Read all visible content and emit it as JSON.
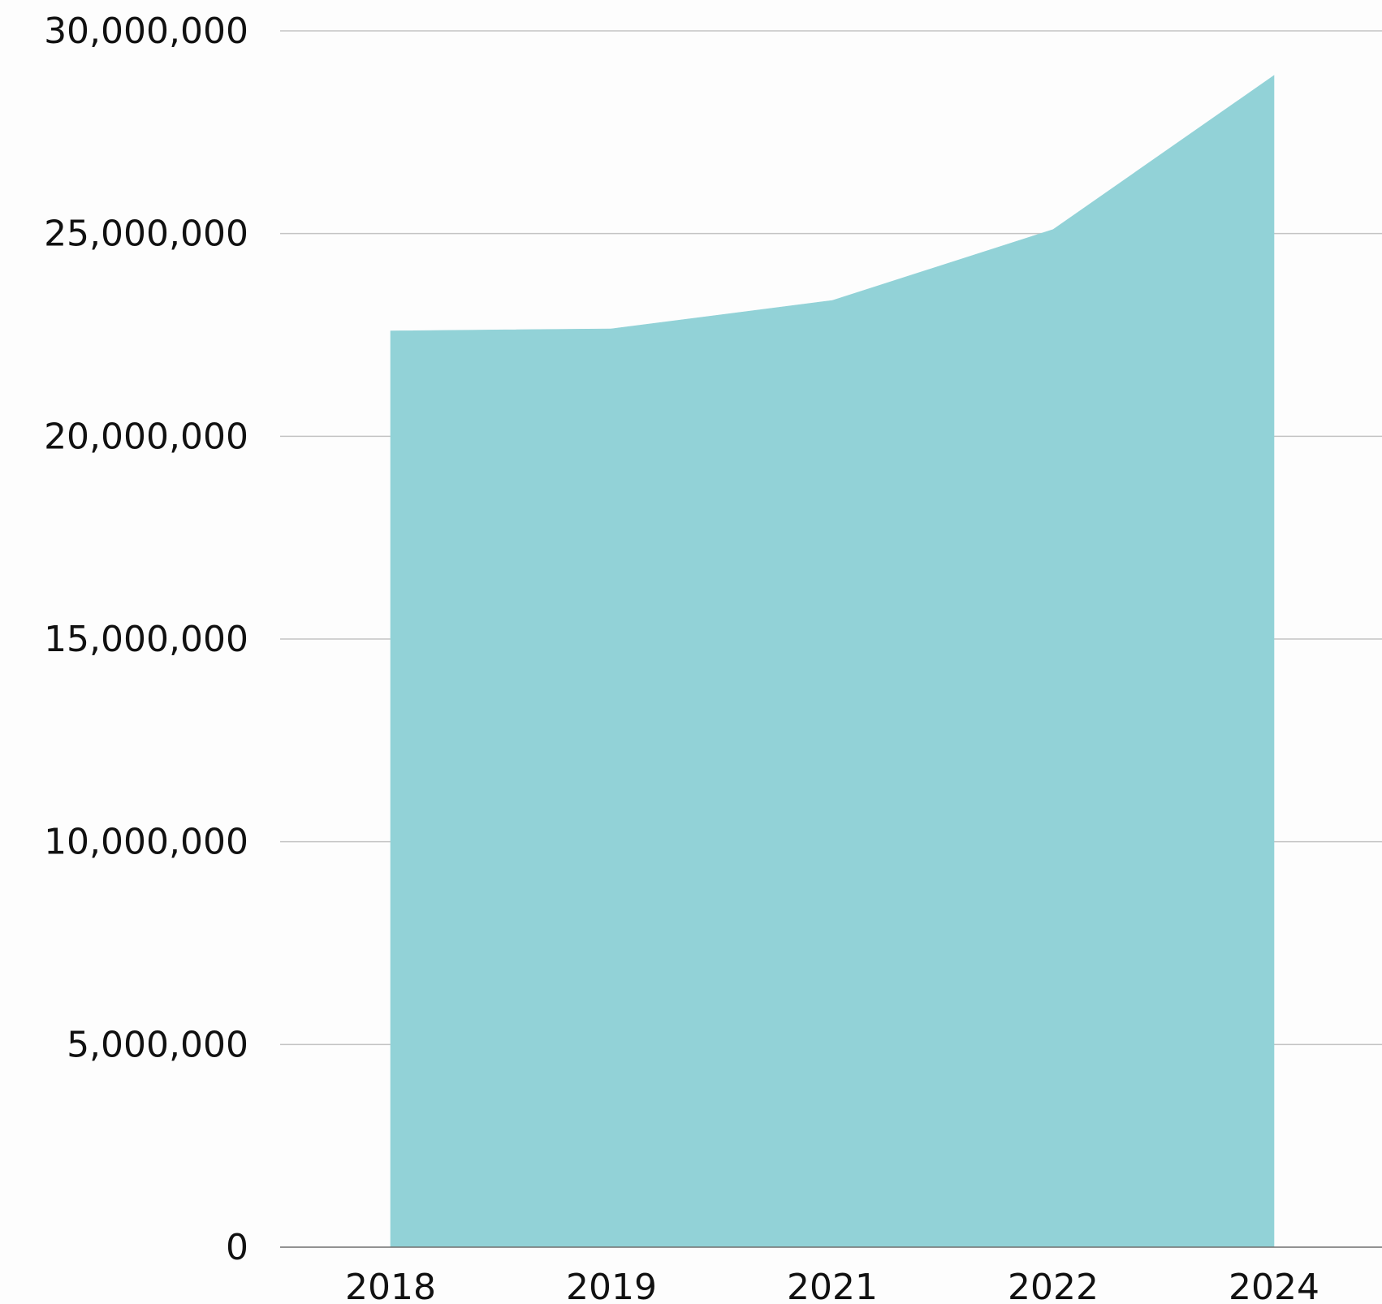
{
  "chart_data": {
    "type": "area",
    "title": "",
    "xlabel": "",
    "ylabel": "",
    "categories": [
      "2018",
      "2019",
      "2021",
      "2022",
      "2024"
    ],
    "series": [
      {
        "values": [
          22600000,
          22650000,
          23350000,
          25100000,
          28900000
        ],
        "color": "#92d2d7"
      }
    ],
    "ylim": [
      0,
      30000000
    ],
    "yticks": [
      0,
      5000000,
      10000000,
      15000000,
      20000000,
      25000000,
      30000000
    ],
    "ytick_labels": [
      "0",
      "5,000,000",
      "10,000,000",
      "15,000,000",
      "20,000,000",
      "25,000,000",
      "30,000,000"
    ],
    "grid": true,
    "legend": "none"
  },
  "colors": {
    "area_fill": "#92d2d7",
    "gridline": "#c4c4c4",
    "baseline": "#6f6f6f",
    "text": "#111111",
    "background": "#fdfdfd"
  }
}
